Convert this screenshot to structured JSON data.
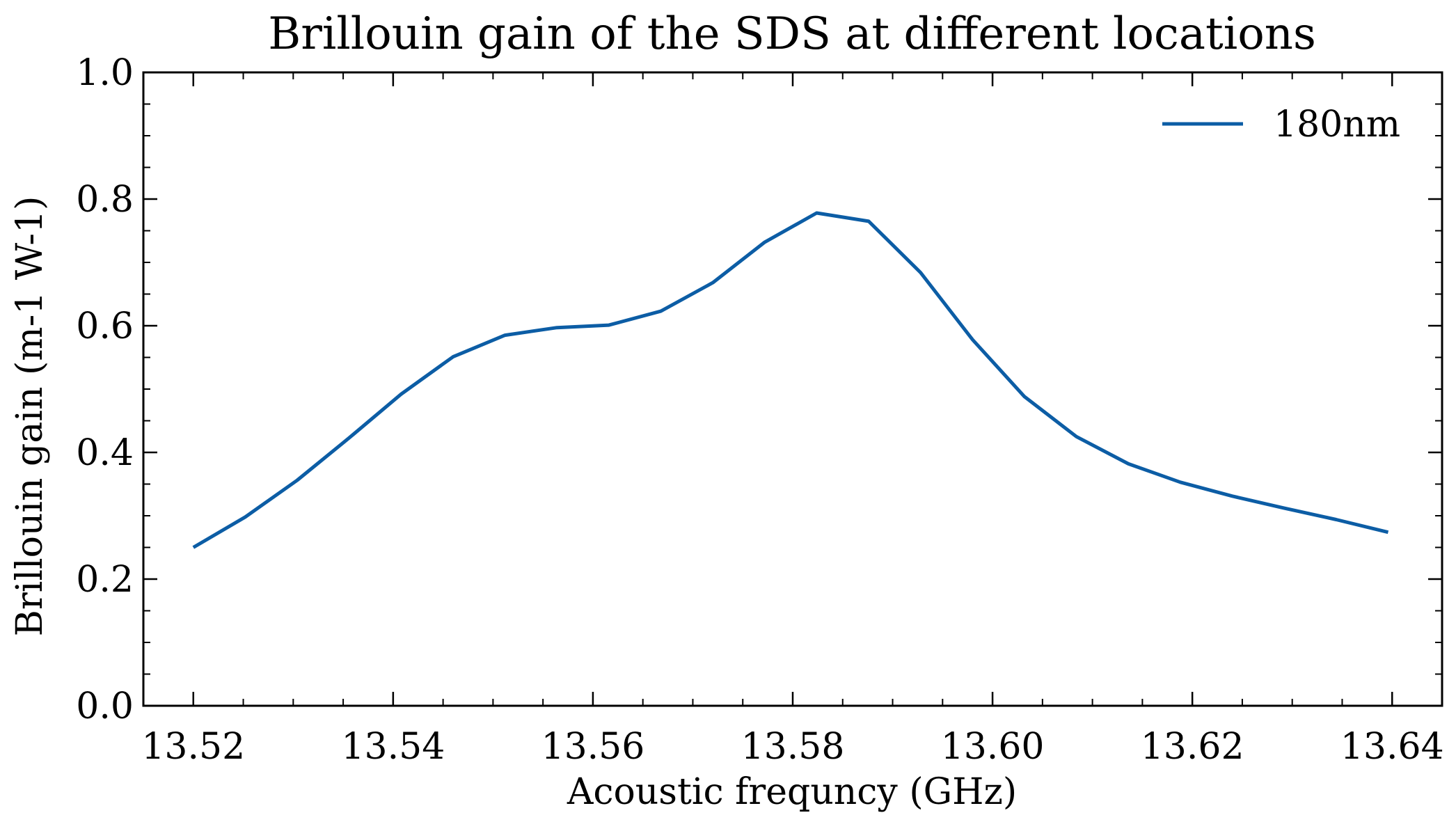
{
  "chart_data": {
    "type": "line",
    "title": "Brillouin gain of the SDS at different locations",
    "xlabel": "Acoustic frequncy (GHz)",
    "ylabel": "Brillouin gain (m-1 W-1)",
    "xlim": [
      13.515,
      13.645
    ],
    "ylim": [
      0.0,
      1.0
    ],
    "x_ticks": [
      "13.52",
      "13.54",
      "13.56",
      "13.58",
      "13.60",
      "13.62",
      "13.64"
    ],
    "y_ticks": [
      "0.0",
      "0.2",
      "0.4",
      "0.6",
      "0.8",
      "1.0"
    ],
    "grid": false,
    "legend_position": "top-right",
    "series": [
      {
        "name": "180nm",
        "color": "#0c5da5",
        "x": [
          13.52,
          13.5252,
          13.5304,
          13.5356,
          13.5408,
          13.546,
          13.5512,
          13.5564,
          13.5616,
          13.5668,
          13.572,
          13.5772,
          13.5824,
          13.5876,
          13.5928,
          13.598,
          13.6032,
          13.6084,
          13.6136,
          13.6188,
          13.624,
          13.6292,
          13.6344,
          13.6396
        ],
        "y": [
          0.25,
          0.298,
          0.356,
          0.423,
          0.492,
          0.551,
          0.585,
          0.597,
          0.601,
          0.623,
          0.668,
          0.732,
          0.778,
          0.765,
          0.684,
          0.578,
          0.488,
          0.425,
          0.382,
          0.353,
          0.331,
          0.312,
          0.294,
          0.274
        ]
      }
    ]
  }
}
